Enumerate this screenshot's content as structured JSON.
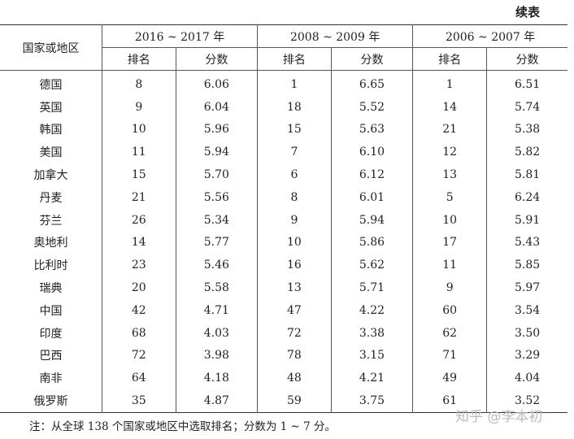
{
  "continued_label": "续表",
  "header": {
    "country": "国家或地区",
    "periods": [
      "2016 ~ 2017 年",
      "2008 ~ 2009 年",
      "2006 ~ 2007 年"
    ],
    "rank": "排名",
    "score": "分数"
  },
  "rows": [
    [
      "德国",
      "8",
      "6.06",
      "1",
      "6.65",
      "1",
      "6.51"
    ],
    [
      "英国",
      "9",
      "6.04",
      "18",
      "5.52",
      "14",
      "5.74"
    ],
    [
      "韩国",
      "10",
      "5.96",
      "15",
      "5.63",
      "21",
      "5.38"
    ],
    [
      "美国",
      "11",
      "5.94",
      "7",
      "6.10",
      "12",
      "5.82"
    ],
    [
      "加拿大",
      "15",
      "5.70",
      "6",
      "6.12",
      "13",
      "5.81"
    ],
    [
      "丹麦",
      "21",
      "5.56",
      "8",
      "6.01",
      "5",
      "6.24"
    ],
    [
      "芬兰",
      "26",
      "5.34",
      "9",
      "5.94",
      "10",
      "5.91"
    ],
    [
      "奥地利",
      "14",
      "5.77",
      "10",
      "5.86",
      "17",
      "5.43"
    ],
    [
      "比利时",
      "23",
      "5.46",
      "16",
      "5.62",
      "11",
      "5.85"
    ],
    [
      "瑞典",
      "20",
      "5.58",
      "13",
      "5.71",
      "9",
      "5.97"
    ],
    [
      "中国",
      "42",
      "4.71",
      "47",
      "4.22",
      "60",
      "3.54"
    ],
    [
      "印度",
      "68",
      "4.03",
      "72",
      "3.38",
      "62",
      "3.50"
    ],
    [
      "巴西",
      "72",
      "3.98",
      "78",
      "3.15",
      "71",
      "3.29"
    ],
    [
      "南非",
      "64",
      "4.18",
      "48",
      "4.21",
      "49",
      "4.04"
    ],
    [
      "俄罗斯",
      "35",
      "4.87",
      "59",
      "3.75",
      "61",
      "3.52"
    ]
  ],
  "note": "注：从全球 138 个国家或地区中选取排名；分数为 1 ~ 7 分。",
  "watermark": "知乎 @李本初"
}
